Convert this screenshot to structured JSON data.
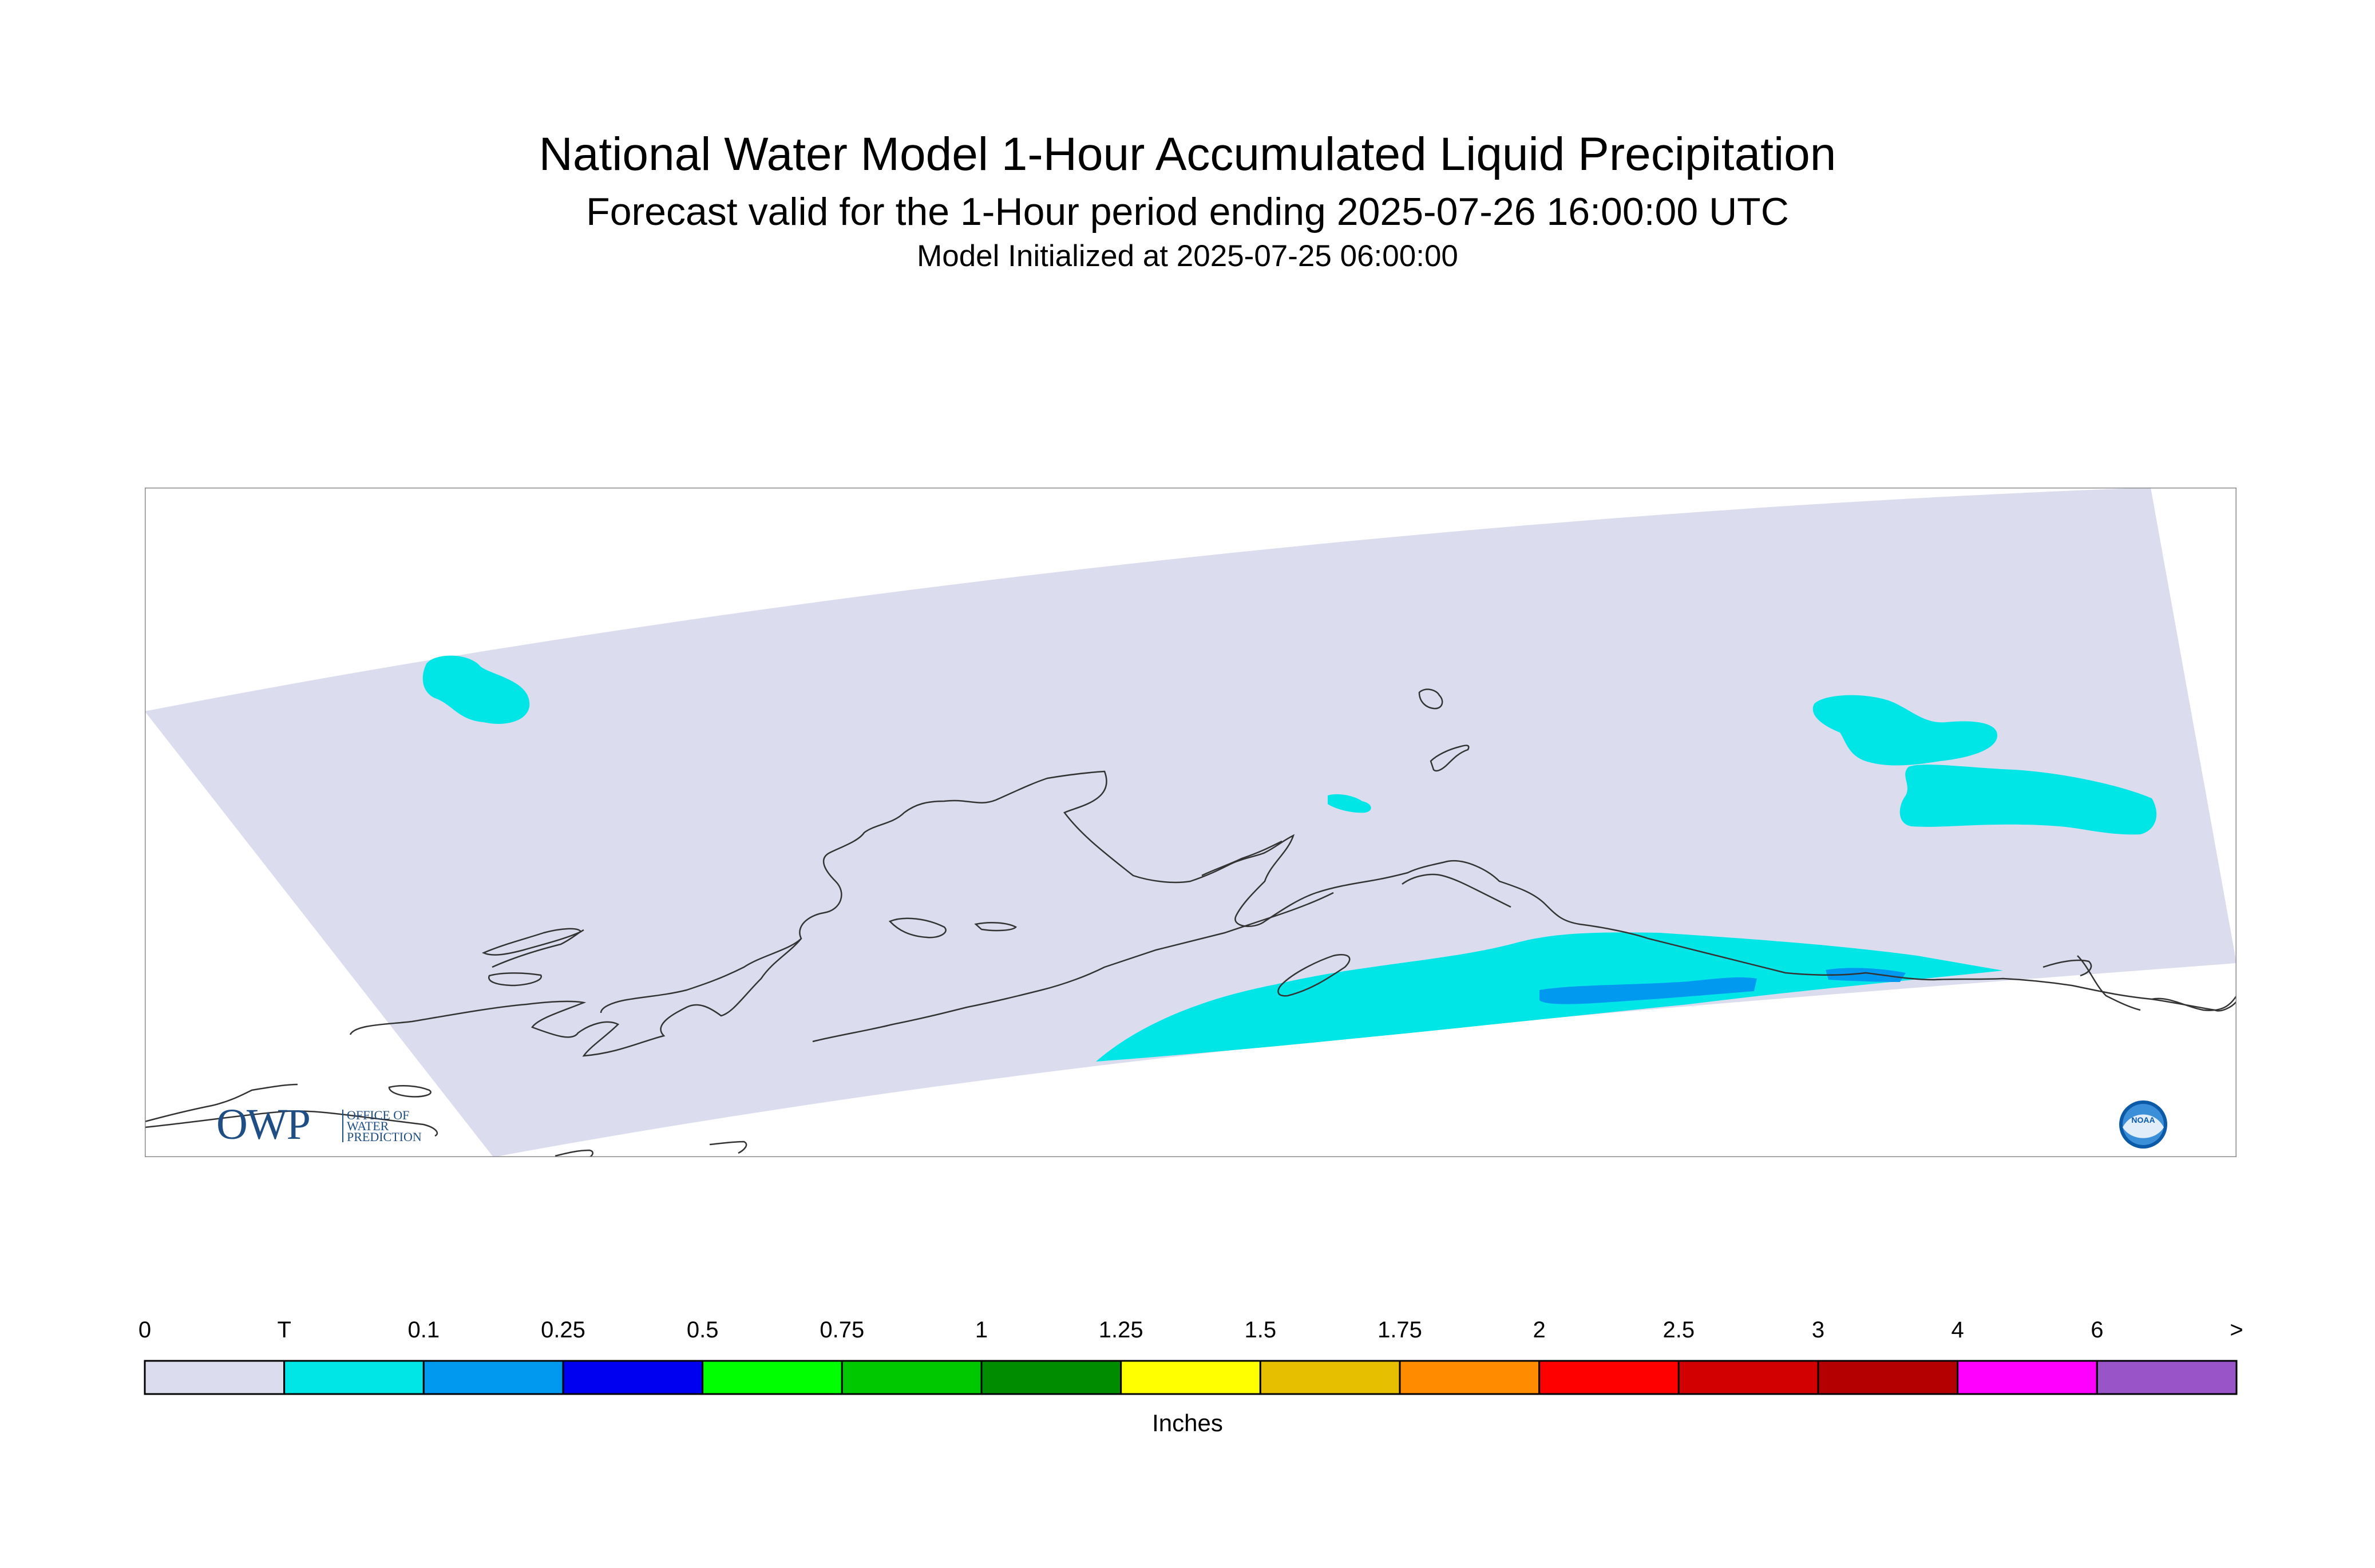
{
  "title": {
    "main": "National Water Model 1-Hour Accumulated Liquid Precipitation",
    "forecast": "Forecast valid for the 1-Hour period ending 2025-07-26 16:00:00 UTC",
    "init": "Model Initialized at 2025-07-25 06:00:00"
  },
  "logos": {
    "owp_mark": "OWP",
    "owp_lines": [
      "OFFICE OF",
      "WATER",
      "PREDICTION"
    ],
    "noaa": "NOAA"
  },
  "legend": {
    "units": "Inches",
    "labels": [
      "0",
      "T",
      "0.1",
      "0.25",
      "0.5",
      "0.75",
      "1",
      "1.25",
      "1.5",
      "1.75",
      "2",
      "2.5",
      "3",
      "4",
      "6",
      ">"
    ],
    "colors": [
      "#dbdcee",
      "#00e6e6",
      "#0099f0",
      "#0000f0",
      "#00ff00",
      "#00c800",
      "#008c00",
      "#ffff00",
      "#e6c000",
      "#ff8c00",
      "#ff0000",
      "#d20000",
      "#b40000",
      "#ff00ff",
      "#9955c8"
    ]
  },
  "map": {
    "domain_color": "#dbdcee",
    "precip_colors": {
      "trace": "#00e6e6",
      "light": "#0099f0"
    },
    "coastline_color": "#333333"
  }
}
